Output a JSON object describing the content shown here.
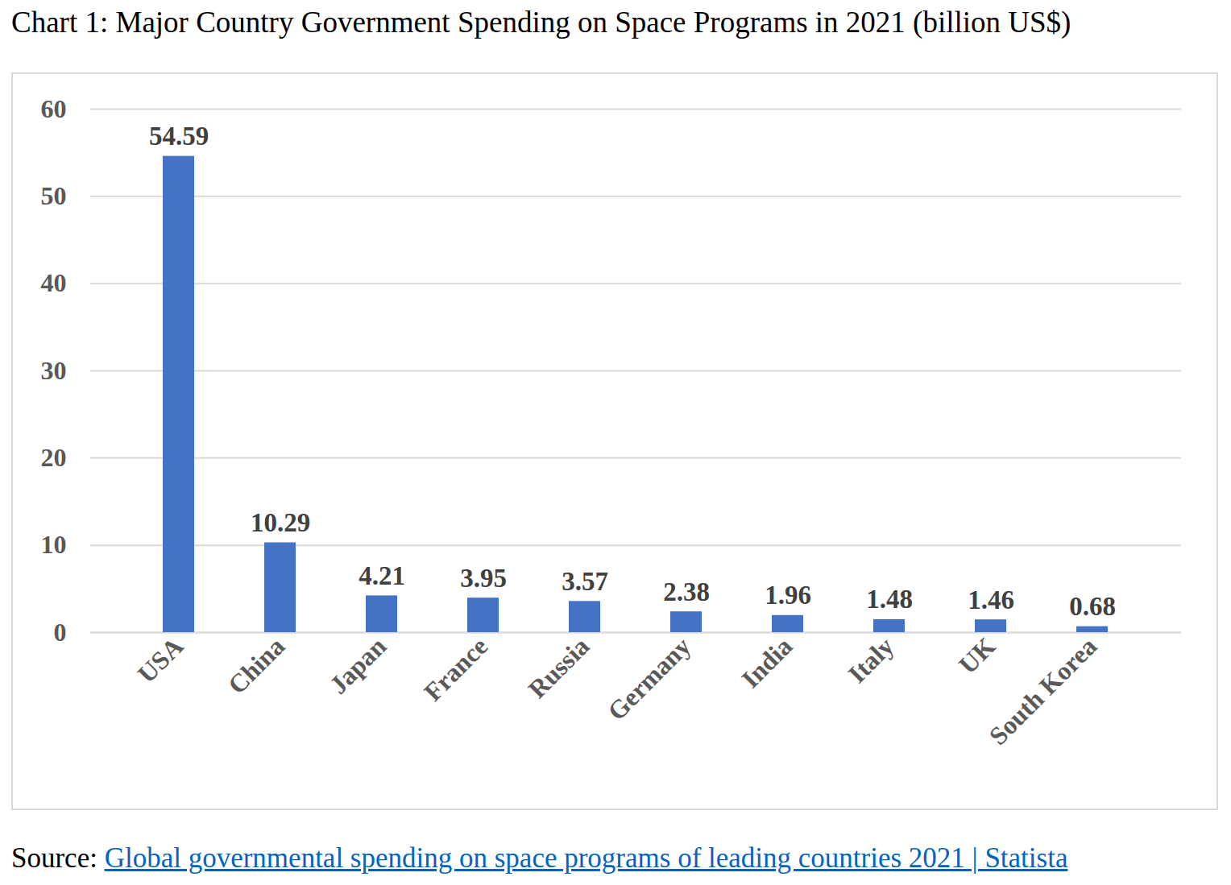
{
  "chart_data": {
    "type": "bar",
    "title": "Chart 1: Major Country Government Spending on Space Programs in 2021 (billion US$)",
    "categories": [
      "USA",
      "China",
      "Japan",
      "France",
      "Russia",
      "Germany",
      "India",
      "Italy",
      "UK",
      "South Korea"
    ],
    "values": [
      54.59,
      10.29,
      4.21,
      3.95,
      3.57,
      2.38,
      1.96,
      1.48,
      1.46,
      0.68
    ],
    "color": "#4472c4",
    "ylim": [
      0,
      60
    ],
    "yticks": [
      0,
      10,
      20,
      30,
      40,
      50,
      60
    ],
    "grid": true,
    "data_labels": true,
    "source": {
      "prefix": "Source:",
      "text": "Global governmental spending on space programs of leading countries 2021 | Statista"
    }
  }
}
